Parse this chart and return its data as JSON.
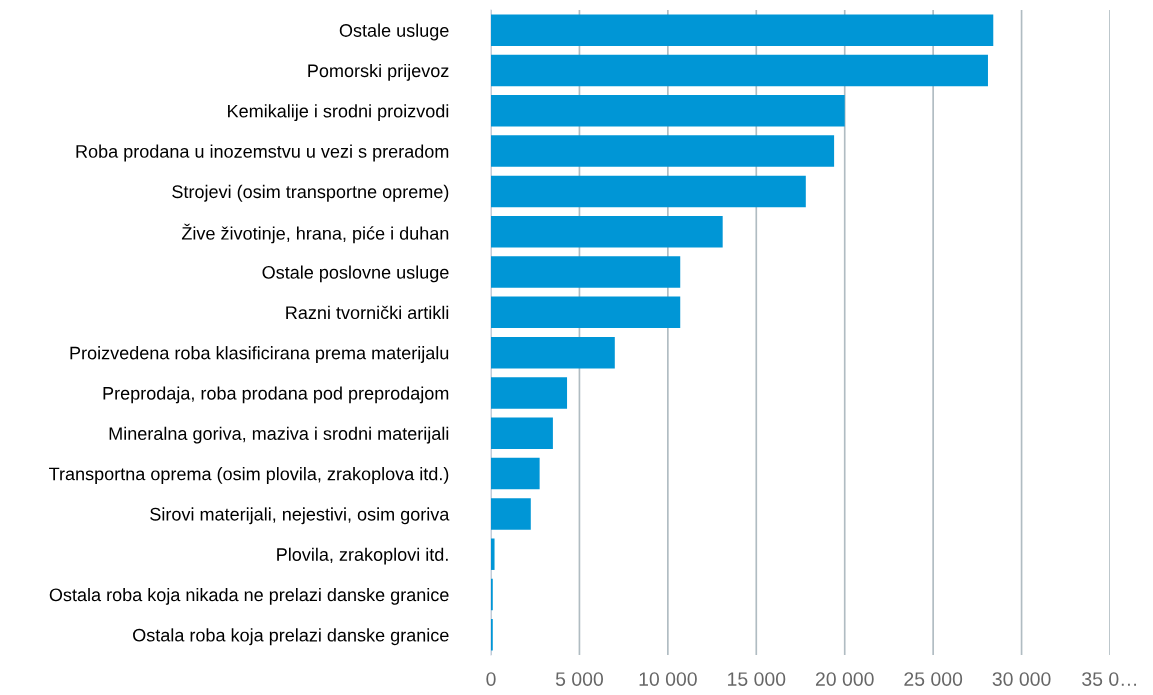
{
  "chart_data": {
    "type": "bar",
    "orientation": "horizontal",
    "categories": [
      "Ostale usluge",
      "Pomorski prijevoz",
      "Kemikalije i srodni proizvodi",
      "Roba prodana u inozemstvu u vezi s preradom",
      "Strojevi (osim transportne opreme)",
      "Žive životinje, hrana, piće i duhan",
      "Ostale poslovne usluge",
      "Razni tvornički artikli",
      "Proizvedena roba klasificirana prema materijalu",
      "Preprodaja, roba prodana pod preprodajom",
      "Mineralna goriva, maziva i srodni materijali",
      "Transportna oprema (osim plovila, zrakoplova itd.)",
      "Sirovi materijali, nejestivi, osim goriva",
      "Plovila, zrakoplovi itd.",
      "Ostala roba koja nikada ne prelazi danske granice",
      "Ostala roba koja prelazi danske granice"
    ],
    "values": [
      28400,
      28100,
      20000,
      19400,
      17800,
      13100,
      10700,
      10700,
      7000,
      4300,
      3500,
      2750,
      2250,
      200,
      100,
      100
    ],
    "color": "#0096d6",
    "xlim": [
      0,
      35000
    ],
    "xticks": [
      {
        "value": 0,
        "label": "0"
      },
      {
        "value": 5000,
        "label": "5 000"
      },
      {
        "value": 10000,
        "label": "10 000"
      },
      {
        "value": 15000,
        "label": "15 000"
      },
      {
        "value": 20000,
        "label": "20 000"
      },
      {
        "value": 25000,
        "label": "25 000"
      },
      {
        "value": 30000,
        "label": "30 000"
      },
      {
        "value": 35000,
        "label": "35 0…"
      }
    ],
    "grid": "x"
  }
}
